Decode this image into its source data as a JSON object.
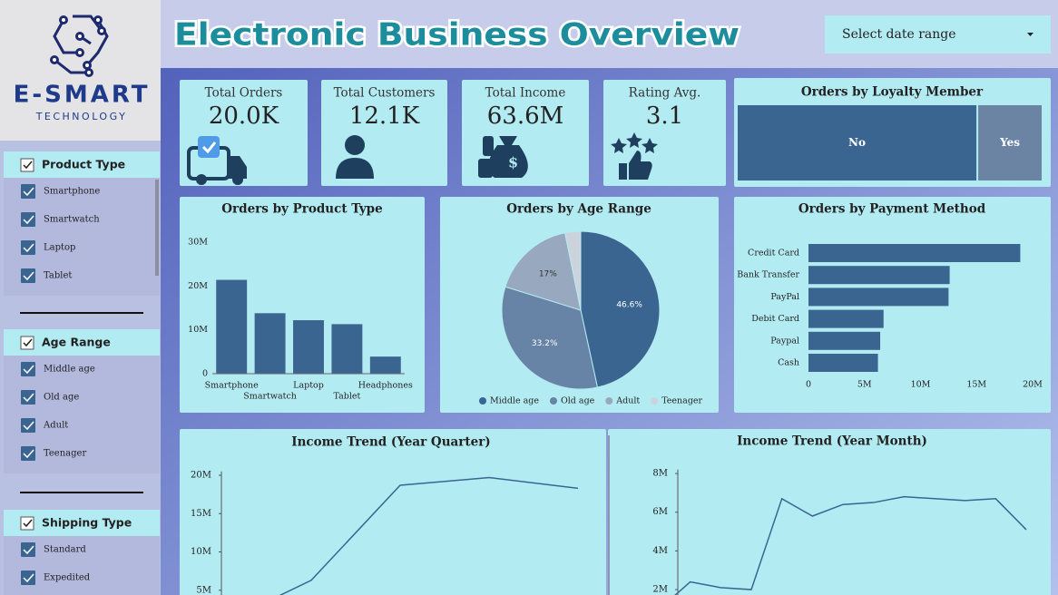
{
  "logo": {
    "name": "E-SMART",
    "tagline": "TECHNOLOGY"
  },
  "header": {
    "title": "Electronic Business Overview",
    "date_filter": "Select date range"
  },
  "filters": [
    {
      "title": "Product Type",
      "items": [
        "Smartphone",
        "Smartwatch",
        "Laptop",
        "Tablet"
      ]
    },
    {
      "title": "Age Range",
      "items": [
        "Middle age",
        "Old age",
        "Adult",
        "Teenager"
      ]
    },
    {
      "title": "Shipping Type",
      "items": [
        "Standard",
        "Expedited"
      ]
    }
  ],
  "kpis": [
    {
      "label": "Total Orders",
      "value": "20.0K"
    },
    {
      "label": "Total Customers",
      "value": "12.1K"
    },
    {
      "label": "Total Income",
      "value": "63.6M"
    },
    {
      "label": "Rating Avg.",
      "value": "3.1"
    }
  ],
  "chart_data": [
    {
      "type": "treemap",
      "title": "Orders by Loyalty Member",
      "categories": [
        "No",
        "Yes"
      ],
      "values": [
        79,
        21
      ],
      "colors": [
        "#3b6591",
        "#6b84a3"
      ]
    },
    {
      "type": "bar",
      "title": "Orders by Product Type",
      "categories": [
        "Smartphone",
        "Smartwatch",
        "Laptop",
        "Tablet",
        "Headphones"
      ],
      "values": [
        21400000,
        13800000,
        12200000,
        11300000,
        3900000
      ],
      "color": "#3b6591",
      "ylim": [
        0,
        30000000
      ],
      "yticks": [
        0,
        {
          "value": 10000000,
          "label": "10M"
        },
        {
          "value": 20000000,
          "label": "20M"
        },
        {
          "value": 30000000,
          "label": "30M"
        }
      ]
    },
    {
      "type": "pie",
      "title": "Orders by Age Range",
      "categories": [
        "Middle age",
        "Old age",
        "Adult",
        "Teenager"
      ],
      "values": [
        46.6,
        33.2,
        17,
        3.2
      ],
      "value_labels": [
        "46.6%",
        "33.2%",
        "17%",
        null
      ],
      "colors": [
        "#3b6591",
        "#6784a6",
        "#97a8bf",
        "#cdd3dc"
      ],
      "legend": "bottom"
    },
    {
      "type": "bar",
      "horizontal": true,
      "title": "Orders by Payment Method",
      "categories": [
        "Credit Card",
        "Bank Transfer",
        "PayPal",
        "Debit Card",
        "Paypal",
        "Cash"
      ],
      "values": [
        18900000,
        12600000,
        12500000,
        6700000,
        6400000,
        6200000
      ],
      "color": "#3b6591",
      "xlim": [
        0,
        20000000
      ],
      "xticks": [
        0,
        {
          "value": 5000000,
          "label": "5M"
        },
        {
          "value": 10000000,
          "label": "10M"
        },
        {
          "value": 15000000,
          "label": "15M"
        },
        {
          "value": 20000000,
          "label": "20M"
        }
      ]
    },
    {
      "type": "line",
      "title": "Income Trend (Year Quarter)",
      "categories": [
        null,
        null,
        null,
        null,
        null
      ],
      "values": [
        700000,
        6300000,
        18700000,
        19700000,
        18300000
      ],
      "color": "#3b6591",
      "ylim": [
        0,
        20500000
      ],
      "yticks": [
        {
          "value": 5000000,
          "label": "5M"
        },
        {
          "value": 10000000,
          "label": "10M"
        },
        {
          "value": 15000000,
          "label": "15M"
        },
        {
          "value": 20000000,
          "label": "20M"
        }
      ]
    },
    {
      "type": "line",
      "title": "Income Trend (Year Month)",
      "categories": [
        null,
        null,
        null,
        null,
        null,
        null,
        null,
        null,
        null,
        null,
        null,
        null,
        null
      ],
      "values": [
        1000000,
        2400000,
        2100000,
        2000000,
        6700000,
        5800000,
        6400000,
        6500000,
        6800000,
        6700000,
        6600000,
        6700000,
        5100000
      ],
      "color": "#3b6591",
      "ylim": [
        0,
        8200000
      ],
      "yticks": [
        {
          "value": 2000000,
          "label": "2M"
        },
        {
          "value": 4000000,
          "label": "4M"
        },
        {
          "value": 6000000,
          "label": "6M"
        },
        {
          "value": 8000000,
          "label": "8M"
        }
      ]
    }
  ]
}
